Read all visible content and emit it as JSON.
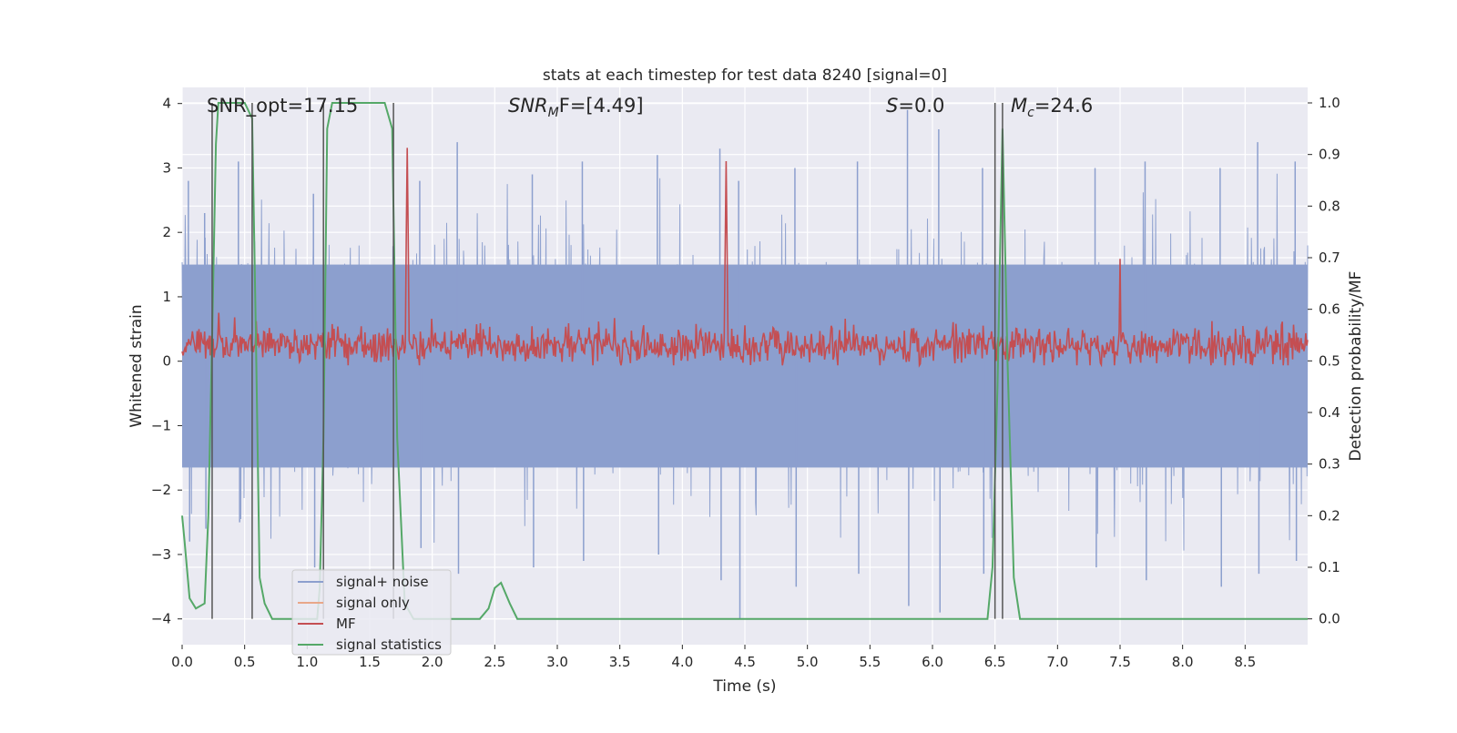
{
  "chart_data": {
    "type": "line",
    "title": "stats at each timestep for test data 8240 [signal=0]",
    "xlabel": "Time (s)",
    "ylabel": "Whitened strain",
    "ylabel_right": "Detection probability/MF",
    "xlim": [
      0.0,
      9.0
    ],
    "ylim": [
      -4.4,
      4.25
    ],
    "ylim_right": [
      -0.05,
      1.03
    ],
    "xticks": [
      0.0,
      0.5,
      1.0,
      1.5,
      2.0,
      2.5,
      3.0,
      3.5,
      4.0,
      4.5,
      5.0,
      5.5,
      6.0,
      6.5,
      7.0,
      7.5,
      8.0,
      8.5
    ],
    "xtick_labels": [
      "0.0",
      "0.5",
      "1.0",
      "1.5",
      "2.0",
      "2.5",
      "3.0",
      "3.5",
      "4.0",
      "4.5",
      "5.0",
      "5.5",
      "6.0",
      "6.5",
      "7.0",
      "7.5",
      "8.0",
      "8.5"
    ],
    "yticks": [
      -4,
      -3,
      -2,
      -1,
      0,
      1,
      2,
      3,
      4
    ],
    "ytick_labels": [
      "−4",
      "−3",
      "−2",
      "−1",
      "0",
      "1",
      "2",
      "3",
      "4"
    ],
    "yticks_right": [
      0.0,
      0.1,
      0.2,
      0.3,
      0.4,
      0.5,
      0.6,
      0.7,
      0.8,
      0.9,
      1.0
    ],
    "ytick_labels_right": [
      "0.0",
      "0.1",
      "0.2",
      "0.3",
      "0.4",
      "0.5",
      "0.6",
      "0.7",
      "0.8",
      "0.9",
      "1.0"
    ],
    "grid": true,
    "legend_position": "lower-left",
    "annotations": {
      "snr_opt": "SNR_opt=17.15",
      "snr_mf_base": "SNR",
      "snr_mf_sub": "M",
      "snr_mf_rest": "F=[4.49]",
      "s_var": "S",
      "s_rest": "=0.0",
      "mc_base": "M",
      "mc_sub": "c",
      "mc_rest": "=24.6"
    },
    "vertical_markers_x": [
      0.24,
      0.56,
      1.13,
      1.69,
      6.5,
      6.56
    ],
    "series": [
      {
        "name": "signal+ noise",
        "color": "#8c9fce",
        "type": "noise",
        "spikes": [
          [
            0.05,
            2.8,
            -2.8
          ],
          [
            0.18,
            2.3,
            -2.6
          ],
          [
            0.45,
            3.1,
            -2.5
          ],
          [
            1.05,
            2.6,
            -3.2
          ],
          [
            1.9,
            2.8,
            -2.9
          ],
          [
            2.2,
            3.4,
            -3.3
          ],
          [
            2.8,
            2.9,
            -3.2
          ],
          [
            3.2,
            3.1,
            -3.1
          ],
          [
            3.8,
            3.2,
            -3.0
          ],
          [
            4.3,
            3.3,
            -3.4
          ],
          [
            4.45,
            2.8,
            -4.0
          ],
          [
            4.9,
            3.0,
            -3.5
          ],
          [
            5.4,
            3.1,
            -3.3
          ],
          [
            5.8,
            3.9,
            -3.8
          ],
          [
            6.05,
            3.6,
            -3.9
          ],
          [
            6.4,
            3.0,
            -3.3
          ],
          [
            7.3,
            3.0,
            -3.2
          ],
          [
            7.7,
            3.1,
            -3.4
          ],
          [
            8.3,
            3.0,
            -3.5
          ],
          [
            8.6,
            3.4,
            -3.3
          ],
          [
            8.9,
            3.1,
            -3.1
          ]
        ]
      },
      {
        "name": "signal only",
        "color": "#e8a789",
        "type": "line",
        "values": []
      },
      {
        "name": "MF",
        "color": "#c44e52",
        "type": "mf",
        "peaks": [
          [
            1.8,
            0.98
          ],
          [
            4.35,
            0.95
          ],
          [
            7.5,
            0.73
          ]
        ]
      },
      {
        "name": "signal statistics",
        "color": "#55a868",
        "type": "line",
        "x": [
          0.0,
          0.02,
          0.06,
          0.11,
          0.18,
          0.21,
          0.24,
          0.27,
          0.29,
          0.31,
          0.36,
          0.5,
          0.56,
          0.59,
          0.62,
          0.66,
          0.72,
          0.8,
          1.0,
          1.08,
          1.1,
          1.13,
          1.16,
          1.2,
          1.62,
          1.68,
          1.72,
          1.78,
          1.85,
          2.0,
          2.25,
          2.38,
          2.45,
          2.5,
          2.55,
          2.62,
          2.68,
          2.75,
          3.0,
          4.0,
          5.0,
          6.0,
          6.44,
          6.48,
          6.52,
          6.56,
          6.6,
          6.65,
          6.7,
          6.75,
          7.0,
          8.0,
          9.0
        ],
        "y": [
          0.2,
          0.15,
          0.04,
          0.02,
          0.03,
          0.2,
          0.55,
          0.92,
          1.0,
          1.0,
          1.0,
          1.0,
          0.97,
          0.55,
          0.08,
          0.03,
          0.0,
          0.0,
          0.0,
          0.0,
          0.06,
          0.35,
          0.95,
          1.0,
          1.0,
          0.95,
          0.35,
          0.03,
          0.0,
          0.0,
          0.0,
          0.0,
          0.02,
          0.06,
          0.07,
          0.03,
          0.0,
          0.0,
          0.0,
          0.0,
          0.0,
          0.0,
          0.0,
          0.1,
          0.45,
          0.95,
          0.5,
          0.08,
          0.0,
          0.0,
          0.0,
          0.0,
          0.0
        ]
      }
    ]
  }
}
